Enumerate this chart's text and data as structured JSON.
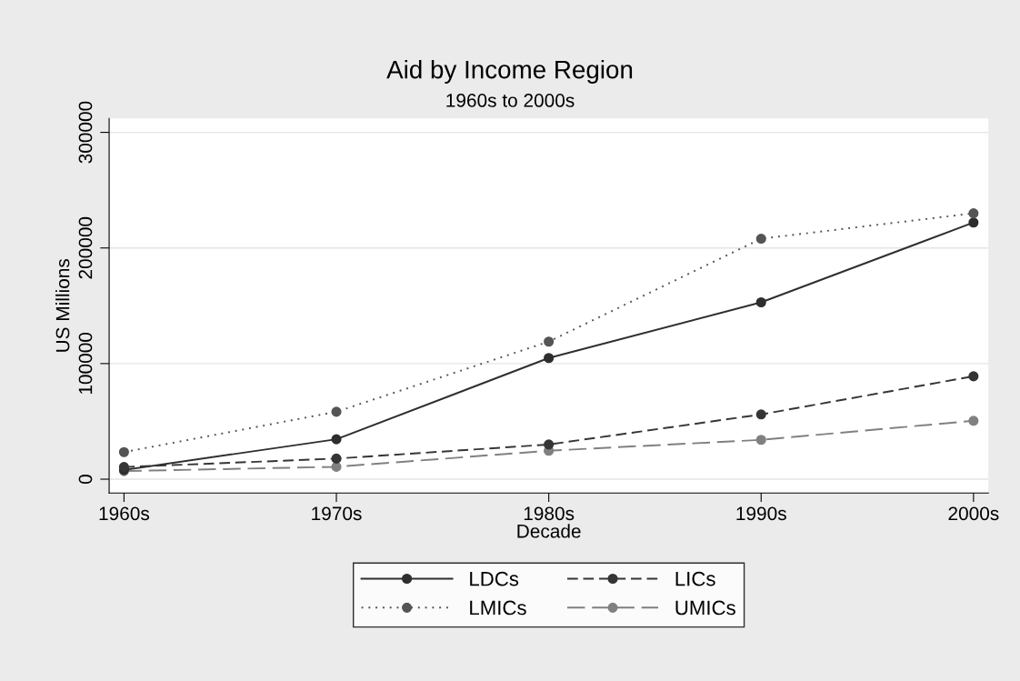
{
  "chart_data": {
    "type": "line",
    "title": "Aid by Income Region",
    "subtitle": "1960s to 2000s",
    "xlabel": "Decade",
    "ylabel": "US Millions",
    "categories": [
      "1960s",
      "1970s",
      "1980s",
      "1990s",
      "2000s"
    ],
    "series": [
      {
        "name": "LDCs",
        "color": "#2e2e2e",
        "line_style": "solid",
        "values": [
          8000,
          34500,
          104800,
          153000,
          222000
        ]
      },
      {
        "name": "LICs",
        "color": "#353535",
        "line_style": "dashed",
        "values": [
          10500,
          17800,
          30000,
          56000,
          89000
        ]
      },
      {
        "name": "LMICs",
        "color": "#555555",
        "line_style": "dotted",
        "values": [
          23400,
          58300,
          119000,
          208000,
          230000
        ]
      },
      {
        "name": "UMICs",
        "color": "#808080",
        "line_style": "longdash",
        "values": [
          7000,
          10700,
          24600,
          34000,
          50500
        ]
      }
    ],
    "ylim": [
      -12000,
      312000
    ],
    "yticks": [
      0,
      100000,
      200000,
      300000
    ],
    "grid": "y",
    "legend": "bottom",
    "marker": "circle"
  }
}
